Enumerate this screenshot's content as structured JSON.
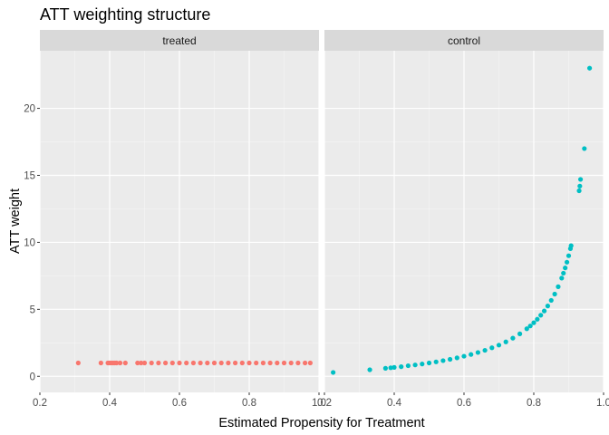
{
  "chart_data": {
    "type": "scatter",
    "title": "ATT weighting structure",
    "xlabel": "Estimated Propensity for Treatment",
    "ylabel": "ATT weight",
    "xlim": [
      0.2,
      1.0
    ],
    "ylim": [
      -1.2,
      24.3
    ],
    "x_ticks": [
      0.2,
      0.4,
      0.6,
      0.8,
      1.0
    ],
    "x_tick_labels": [
      "0.2",
      "0.4",
      "0.6",
      "0.8",
      "1.0"
    ],
    "y_ticks": [
      0,
      5,
      10,
      15,
      20
    ],
    "y_tick_labels": [
      "0",
      "5",
      "10",
      "15",
      "20"
    ],
    "grid": true,
    "legend": "none",
    "panels": [
      {
        "name": "treated",
        "color": "#F8766D",
        "points": [
          [
            0.31,
            1
          ],
          [
            0.375,
            1
          ],
          [
            0.395,
            1
          ],
          [
            0.4,
            1
          ],
          [
            0.405,
            1
          ],
          [
            0.41,
            1
          ],
          [
            0.415,
            1
          ],
          [
            0.42,
            1
          ],
          [
            0.43,
            1
          ],
          [
            0.445,
            1
          ],
          [
            0.48,
            1
          ],
          [
            0.49,
            1
          ],
          [
            0.5,
            1
          ],
          [
            0.52,
            1
          ],
          [
            0.54,
            1
          ],
          [
            0.56,
            1
          ],
          [
            0.58,
            1
          ],
          [
            0.6,
            1
          ],
          [
            0.62,
            1
          ],
          [
            0.64,
            1
          ],
          [
            0.66,
            1
          ],
          [
            0.68,
            1
          ],
          [
            0.7,
            1
          ],
          [
            0.72,
            1
          ],
          [
            0.74,
            1
          ],
          [
            0.76,
            1
          ],
          [
            0.78,
            1
          ],
          [
            0.8,
            1
          ],
          [
            0.82,
            1
          ],
          [
            0.84,
            1
          ],
          [
            0.86,
            1
          ],
          [
            0.88,
            1
          ],
          [
            0.9,
            1
          ],
          [
            0.92,
            1
          ],
          [
            0.94,
            1
          ],
          [
            0.96,
            1
          ],
          [
            0.975,
            1
          ]
        ]
      },
      {
        "name": "control",
        "color": "#00BFC4",
        "points": [
          [
            0.225,
            0.29
          ],
          [
            0.33,
            0.49
          ],
          [
            0.375,
            0.6
          ],
          [
            0.39,
            0.64
          ],
          [
            0.4,
            0.67
          ],
          [
            0.42,
            0.72
          ],
          [
            0.44,
            0.79
          ],
          [
            0.46,
            0.85
          ],
          [
            0.48,
            0.92
          ],
          [
            0.5,
            1.0
          ],
          [
            0.52,
            1.08
          ],
          [
            0.54,
            1.17
          ],
          [
            0.56,
            1.27
          ],
          [
            0.58,
            1.38
          ],
          [
            0.6,
            1.5
          ],
          [
            0.62,
            1.63
          ],
          [
            0.64,
            1.78
          ],
          [
            0.66,
            1.94
          ],
          [
            0.68,
            2.13
          ],
          [
            0.7,
            2.33
          ],
          [
            0.72,
            2.57
          ],
          [
            0.74,
            2.85
          ],
          [
            0.76,
            3.17
          ],
          [
            0.78,
            3.55
          ],
          [
            0.79,
            3.76
          ],
          [
            0.8,
            4.0
          ],
          [
            0.81,
            4.26
          ],
          [
            0.82,
            4.56
          ],
          [
            0.83,
            4.88
          ],
          [
            0.84,
            5.25
          ],
          [
            0.85,
            5.67
          ],
          [
            0.86,
            6.14
          ],
          [
            0.87,
            6.69
          ],
          [
            0.88,
            7.33
          ],
          [
            0.885,
            7.7
          ],
          [
            0.89,
            8.09
          ],
          [
            0.895,
            8.52
          ],
          [
            0.9,
            9.0
          ],
          [
            0.905,
            9.53
          ],
          [
            0.907,
            9.75
          ],
          [
            0.93,
            13.85
          ],
          [
            0.932,
            14.2
          ],
          [
            0.934,
            14.7
          ],
          [
            0.945,
            17.0
          ],
          [
            0.96,
            23.0
          ]
        ]
      }
    ]
  }
}
